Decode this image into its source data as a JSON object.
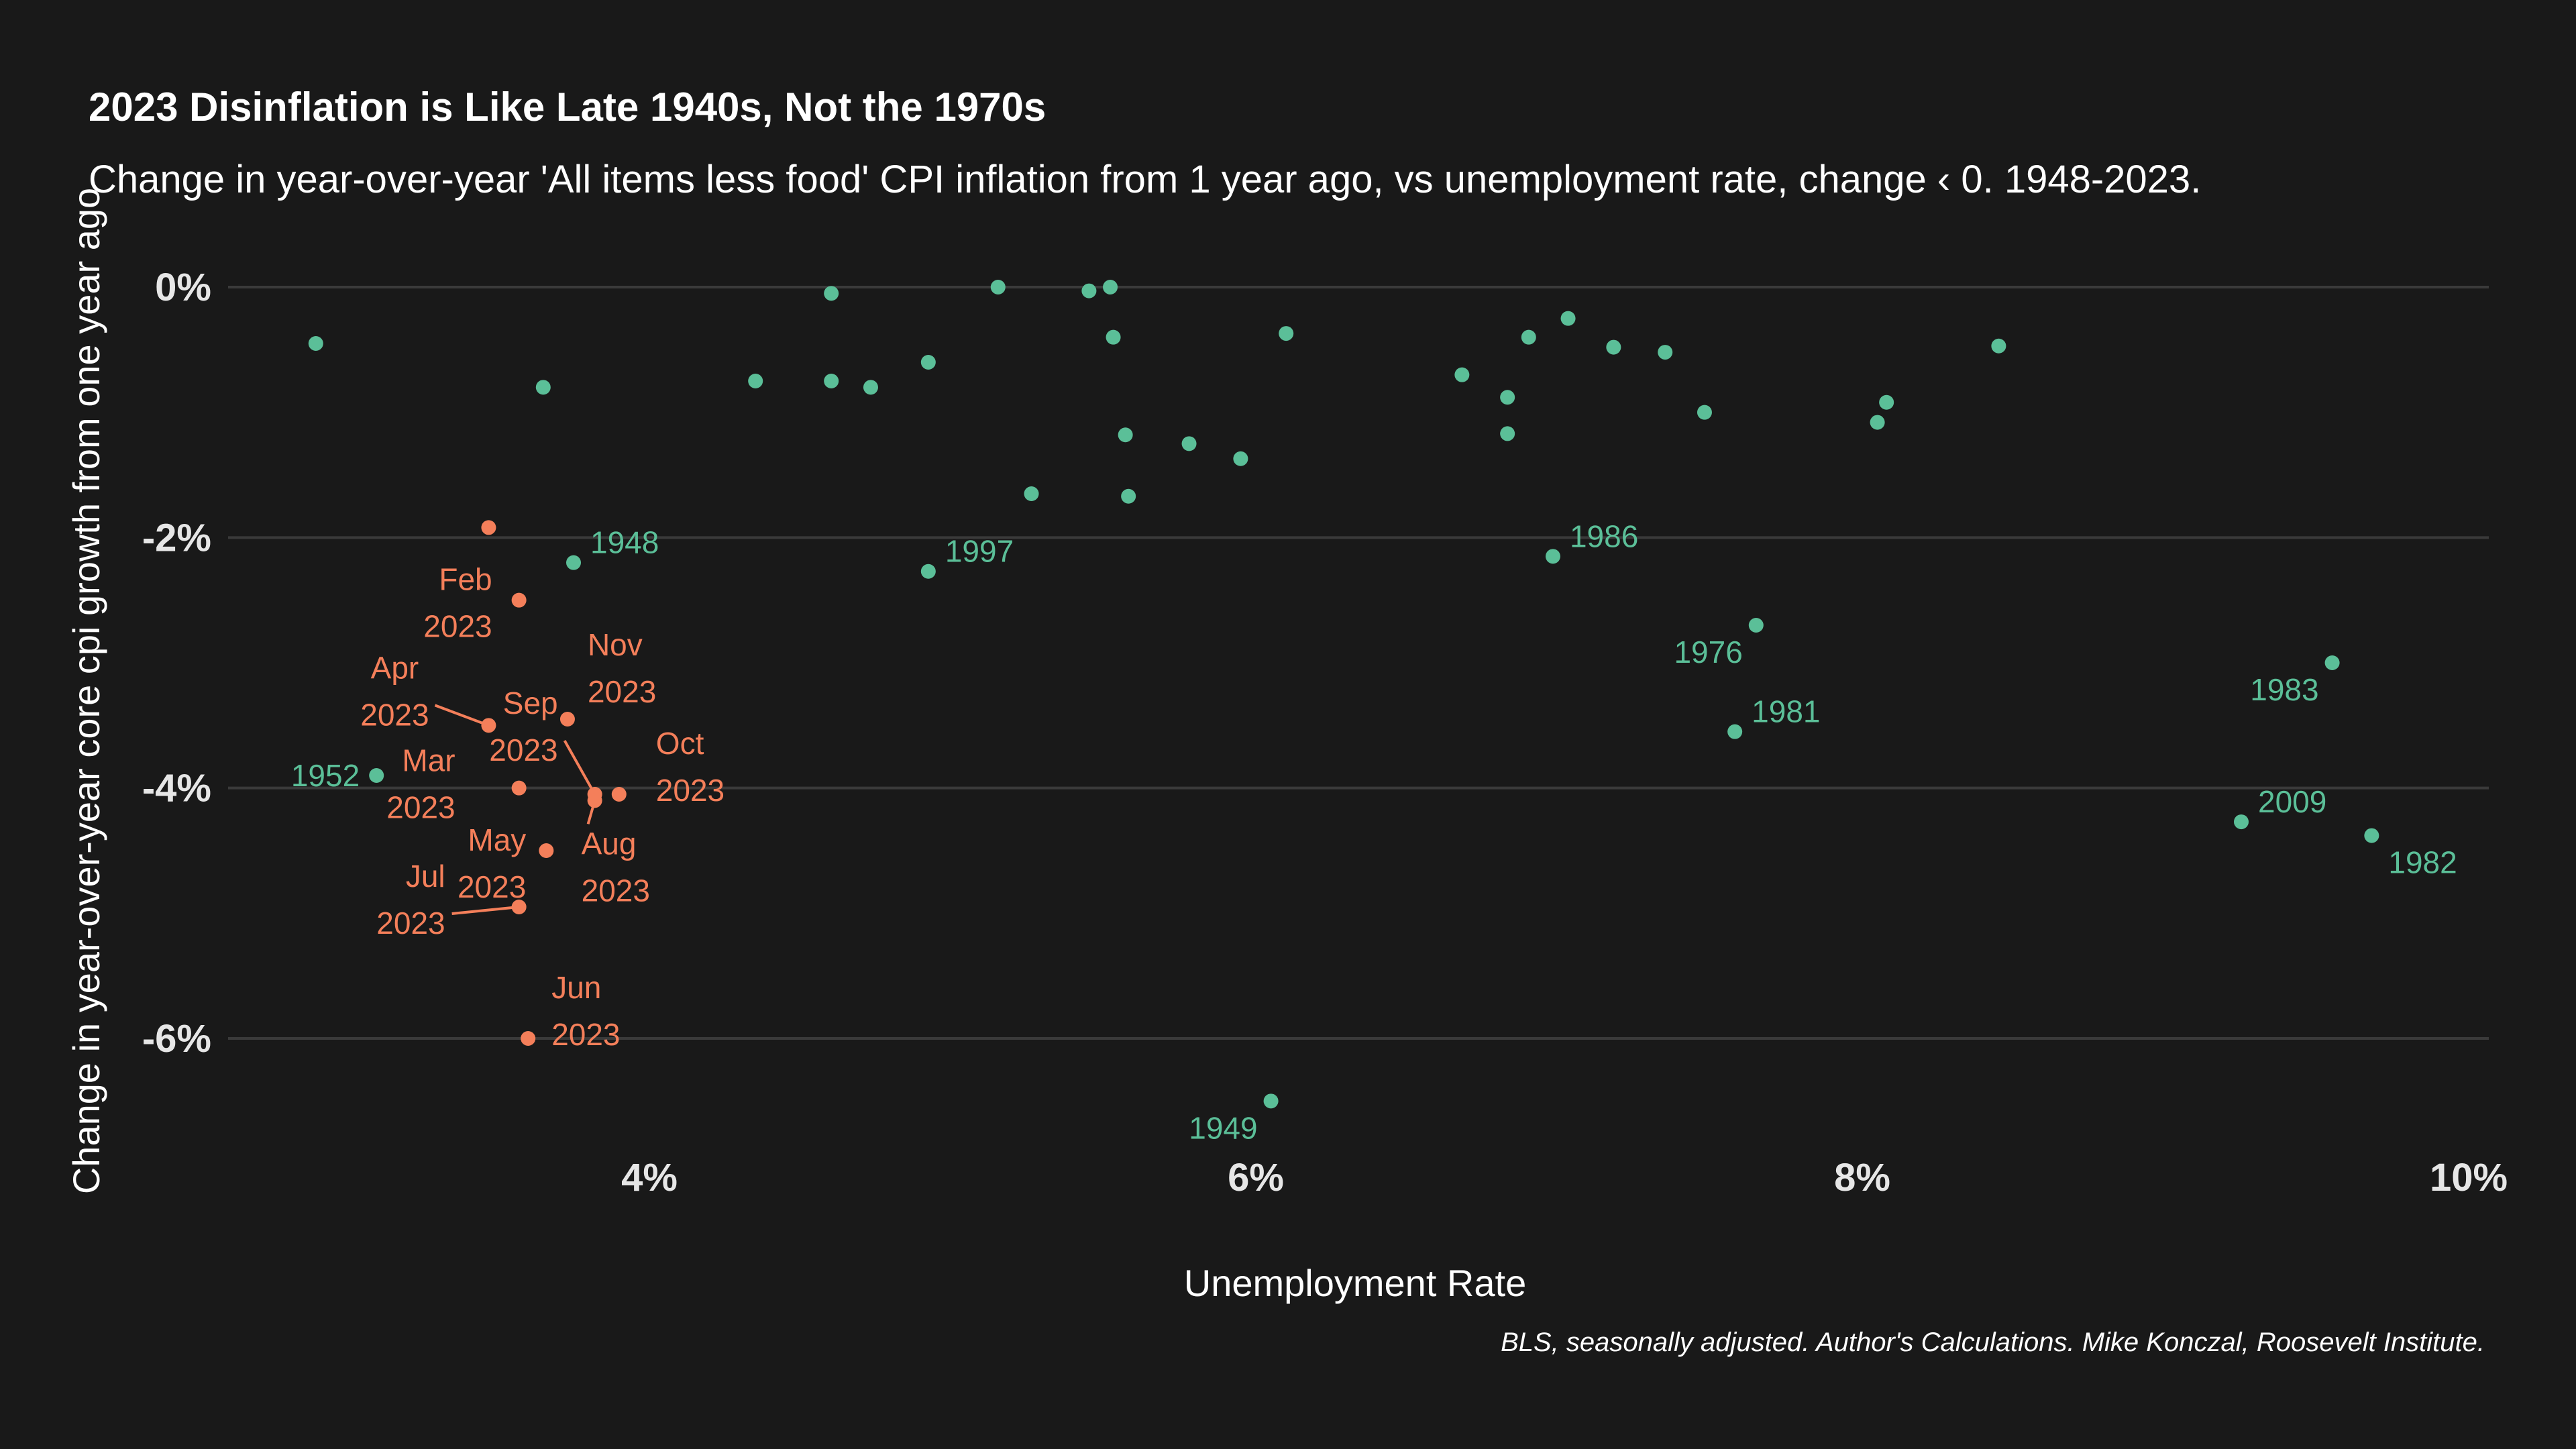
{
  "chart_data": {
    "type": "scatter",
    "title": "2023 Disinflation is Like Late 1940s, Not the 1970s",
    "subtitle": "Change in year-over-year 'All items less food' CPI inflation from 1 year ago, vs unemployment rate, change ‹ 0. 1948-2023.",
    "xlabel": "Unemployment Rate",
    "ylabel": "Change in year-over-year core cpi growth from one year ago",
    "caption": "BLS, seasonally adjusted. Author's Calculations. Mike Konczal, Roosevelt Institute.",
    "xlim": [
      2.3,
      10.1
    ],
    "ylim": [
      -7.2,
      0.2
    ],
    "x_ticks": [
      {
        "value": 4,
        "label": "4%"
      },
      {
        "value": 6,
        "label": "6%"
      },
      {
        "value": 8,
        "label": "8%"
      },
      {
        "value": 10,
        "label": "10%"
      }
    ],
    "y_ticks": [
      {
        "value": 0,
        "label": "0%"
      },
      {
        "value": -2,
        "label": "-2%"
      },
      {
        "value": -4,
        "label": "-4%"
      },
      {
        "value": -6,
        "label": "-6%"
      }
    ],
    "grid": true,
    "colors": {
      "background": "#191919",
      "historical": "#5bbf98",
      "recent": "#f47f5a",
      "grid": "#3a3a3a"
    },
    "series": [
      {
        "points": [
          {
            "x": 2.9,
            "y": -0.45
          },
          {
            "x": 3.1,
            "y": -3.9,
            "label": "1952"
          },
          {
            "x": 3.65,
            "y": -0.8
          },
          {
            "x": 3.75,
            "y": -2.2,
            "label": "1948"
          },
          {
            "x": 4.35,
            "y": -0.75
          },
          {
            "x": 4.6,
            "y": -0.05
          },
          {
            "x": 4.6,
            "y": -0.75
          },
          {
            "x": 4.73,
            "y": -0.8
          },
          {
            "x": 4.92,
            "y": -0.6
          },
          {
            "x": 4.92,
            "y": -2.27,
            "label": "1997"
          },
          {
            "x": 5.15,
            "y": 0.0
          },
          {
            "x": 5.26,
            "y": -1.65
          },
          {
            "x": 5.45,
            "y": -0.03
          },
          {
            "x": 5.52,
            "y": 0.0
          },
          {
            "x": 5.53,
            "y": -0.4
          },
          {
            "x": 5.57,
            "y": -1.18
          },
          {
            "x": 5.58,
            "y": -1.67
          },
          {
            "x": 5.78,
            "y": -1.25
          },
          {
            "x": 5.95,
            "y": -1.37
          },
          {
            "x": 6.05,
            "y": -6.5,
            "label": "1949"
          },
          {
            "x": 6.1,
            "y": -0.37
          },
          {
            "x": 6.68,
            "y": -0.7
          },
          {
            "x": 6.83,
            "y": -0.88
          },
          {
            "x": 6.83,
            "y": -1.17
          },
          {
            "x": 6.9,
            "y": -0.4
          },
          {
            "x": 6.98,
            "y": -2.15,
            "label": "1986"
          },
          {
            "x": 7.03,
            "y": -0.25
          },
          {
            "x": 7.18,
            "y": -0.48
          },
          {
            "x": 7.35,
            "y": -0.52
          },
          {
            "x": 7.48,
            "y": -1.0
          },
          {
            "x": 7.58,
            "y": -3.55,
            "label": "1981"
          },
          {
            "x": 7.65,
            "y": -2.7,
            "label": "1976"
          },
          {
            "x": 8.05,
            "y": -1.08
          },
          {
            "x": 8.08,
            "y": -0.92
          },
          {
            "x": 8.45,
            "y": -0.47
          },
          {
            "x": 9.25,
            "y": -4.27,
            "label": "2009"
          },
          {
            "x": 9.55,
            "y": -3.0,
            "label": "1983"
          },
          {
            "x": 9.68,
            "y": -4.38,
            "label": "1982"
          }
        ]
      },
      {
        "points": [
          {
            "x": 3.47,
            "y": -1.92
          },
          {
            "x": 3.57,
            "y": -2.5,
            "label": "Feb 2023"
          },
          {
            "x": 3.47,
            "y": -3.5,
            "label": "Apr 2023"
          },
          {
            "x": 3.73,
            "y": -3.45,
            "label": "Nov 2023"
          },
          {
            "x": 3.57,
            "y": -4.0,
            "label": "Mar 2023"
          },
          {
            "x": 3.82,
            "y": -4.05,
            "label": "Sep 2023"
          },
          {
            "x": 3.82,
            "y": -4.1,
            "label": "Aug 2023"
          },
          {
            "x": 3.9,
            "y": -4.05,
            "label": "Oct 2023"
          },
          {
            "x": 3.66,
            "y": -4.5,
            "label": "May 2023"
          },
          {
            "x": 3.57,
            "y": -4.95,
            "label": "Jul 2023"
          },
          {
            "x": 3.6,
            "y": -6.0,
            "label": "Jun 2023"
          }
        ]
      }
    ]
  }
}
